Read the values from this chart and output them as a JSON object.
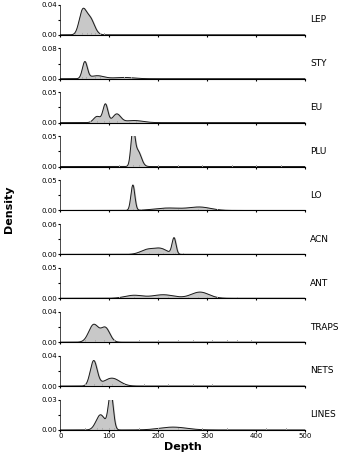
{
  "panels": [
    {
      "label": "LEP",
      "ylim": [
        0,
        0.04
      ],
      "yticks": [
        0.0,
        0.02,
        0.04
      ],
      "ytick_labels": [
        "0.00",
        "",
        "0.04"
      ],
      "kde_means": [
        45,
        60
      ],
      "kde_stds": [
        7,
        9
      ],
      "kde_weights": [
        0.5,
        0.5
      ],
      "rug_x": [
        30,
        45,
        55,
        62,
        70,
        80,
        90
      ]
    },
    {
      "label": "STY",
      "ylim": [
        0,
        0.08
      ],
      "yticks": [
        0.0,
        0.04,
        0.08
      ],
      "ytick_labels": [
        "0.00",
        "",
        "0.08"
      ],
      "kde_means": [
        50,
        75,
        130
      ],
      "kde_stds": [
        5,
        14,
        20
      ],
      "kde_weights": [
        0.55,
        0.28,
        0.17
      ],
      "rug_x": [
        45,
        52,
        70,
        80,
        130,
        145
      ]
    },
    {
      "label": "EU",
      "ylim": [
        0,
        0.05
      ],
      "yticks": [
        0.0,
        0.025,
        0.05
      ],
      "ytick_labels": [
        "0.00",
        "",
        "0.05"
      ],
      "kde_means": [
        75,
        92,
        115,
        150
      ],
      "kde_stds": [
        7,
        5,
        8,
        18
      ],
      "kde_weights": [
        0.18,
        0.38,
        0.28,
        0.16
      ],
      "rug_x": [
        60,
        75,
        90,
        100,
        115,
        140,
        155
      ]
    },
    {
      "label": "PLU",
      "ylim": [
        0,
        0.05
      ],
      "yticks": [
        0.0,
        0.025,
        0.05
      ],
      "ytick_labels": [
        "0.00",
        "",
        "0.05"
      ],
      "kde_means": [
        148,
        158
      ],
      "kde_stds": [
        4,
        7
      ],
      "kde_weights": [
        0.55,
        0.45
      ],
      "rug_x": [
        120,
        148,
        160,
        200,
        240,
        290,
        350,
        400,
        450
      ]
    },
    {
      "label": "LO",
      "ylim": [
        0,
        0.05
      ],
      "yticks": [
        0.0,
        0.025,
        0.05
      ],
      "ytick_labels": [
        "0.00",
        "",
        "0.05"
      ],
      "kde_means": [
        148,
        220,
        285
      ],
      "kde_stds": [
        4,
        28,
        22
      ],
      "kde_weights": [
        0.42,
        0.28,
        0.3
      ],
      "rug_x": [
        148,
        165,
        210,
        240,
        280,
        300,
        320
      ]
    },
    {
      "label": "ACN",
      "ylim": [
        0,
        0.06
      ],
      "yticks": [
        0.0,
        0.03,
        0.06
      ],
      "ytick_labels": [
        "0.00",
        "",
        "0.06"
      ],
      "kde_means": [
        178,
        205,
        232
      ],
      "kde_stds": [
        14,
        13,
        4
      ],
      "kde_weights": [
        0.33,
        0.35,
        0.32
      ],
      "rug_x": [
        160,
        180,
        200,
        210,
        230,
        235,
        250
      ]
    },
    {
      "label": "ANT",
      "ylim": [
        0,
        0.05
      ],
      "yticks": [
        0.0,
        0.025,
        0.05
      ],
      "ytick_labels": [
        "0.00",
        "",
        "0.05"
      ],
      "kde_means": [
        150,
        210,
        285
      ],
      "kde_stds": [
        18,
        22,
        18
      ],
      "kde_weights": [
        0.22,
        0.32,
        0.46
      ],
      "rug_x": [
        120,
        150,
        200,
        220,
        260,
        280,
        300,
        320,
        360
      ]
    },
    {
      "label": "TRAPS",
      "ylim": [
        0,
        0.04
      ],
      "yticks": [
        0.0,
        0.02,
        0.04
      ],
      "ytick_labels": [
        "0.00",
        "",
        "0.04"
      ],
      "kde_means": [
        68,
        92
      ],
      "kde_stds": [
        10,
        9
      ],
      "kde_weights": [
        0.58,
        0.42
      ],
      "rug_x": [
        50,
        70,
        90,
        110,
        160,
        200,
        240,
        270,
        310,
        340,
        360,
        390
      ]
    },
    {
      "label": "NETS",
      "ylim": [
        0,
        0.04
      ],
      "yticks": [
        0.0,
        0.02,
        0.04
      ],
      "ytick_labels": [
        "0.00",
        "",
        "0.04"
      ],
      "kde_means": [
        68,
        105
      ],
      "kde_stds": [
        7,
        16
      ],
      "kde_weights": [
        0.58,
        0.42
      ],
      "rug_x": [
        50,
        68,
        85,
        105,
        130,
        170,
        220,
        270,
        310
      ]
    },
    {
      "label": "LINES",
      "ylim": [
        0,
        0.03
      ],
      "yticks": [
        0.0,
        0.015,
        0.03
      ],
      "ytick_labels": [
        "0.00",
        "",
        "0.03"
      ],
      "kde_means": [
        82,
        103,
        230
      ],
      "kde_stds": [
        9,
        5,
        28
      ],
      "kde_weights": [
        0.34,
        0.46,
        0.2
      ],
      "rug_x": [
        50,
        75,
        85,
        100,
        110,
        160,
        200,
        240,
        290,
        340,
        420,
        460
      ]
    }
  ],
  "xlim": [
    0,
    500
  ],
  "xticks": [
    0,
    100,
    200,
    300,
    400,
    500
  ],
  "xlabel": "Depth",
  "ylabel": "Density",
  "fill_color": "#c8c8c8",
  "line_color": "#1a1a1a",
  "rug_color": "#aaaaaa",
  "label_fontsize": 6.5,
  "axis_label_fontsize": 8,
  "tick_fontsize": 5.0
}
